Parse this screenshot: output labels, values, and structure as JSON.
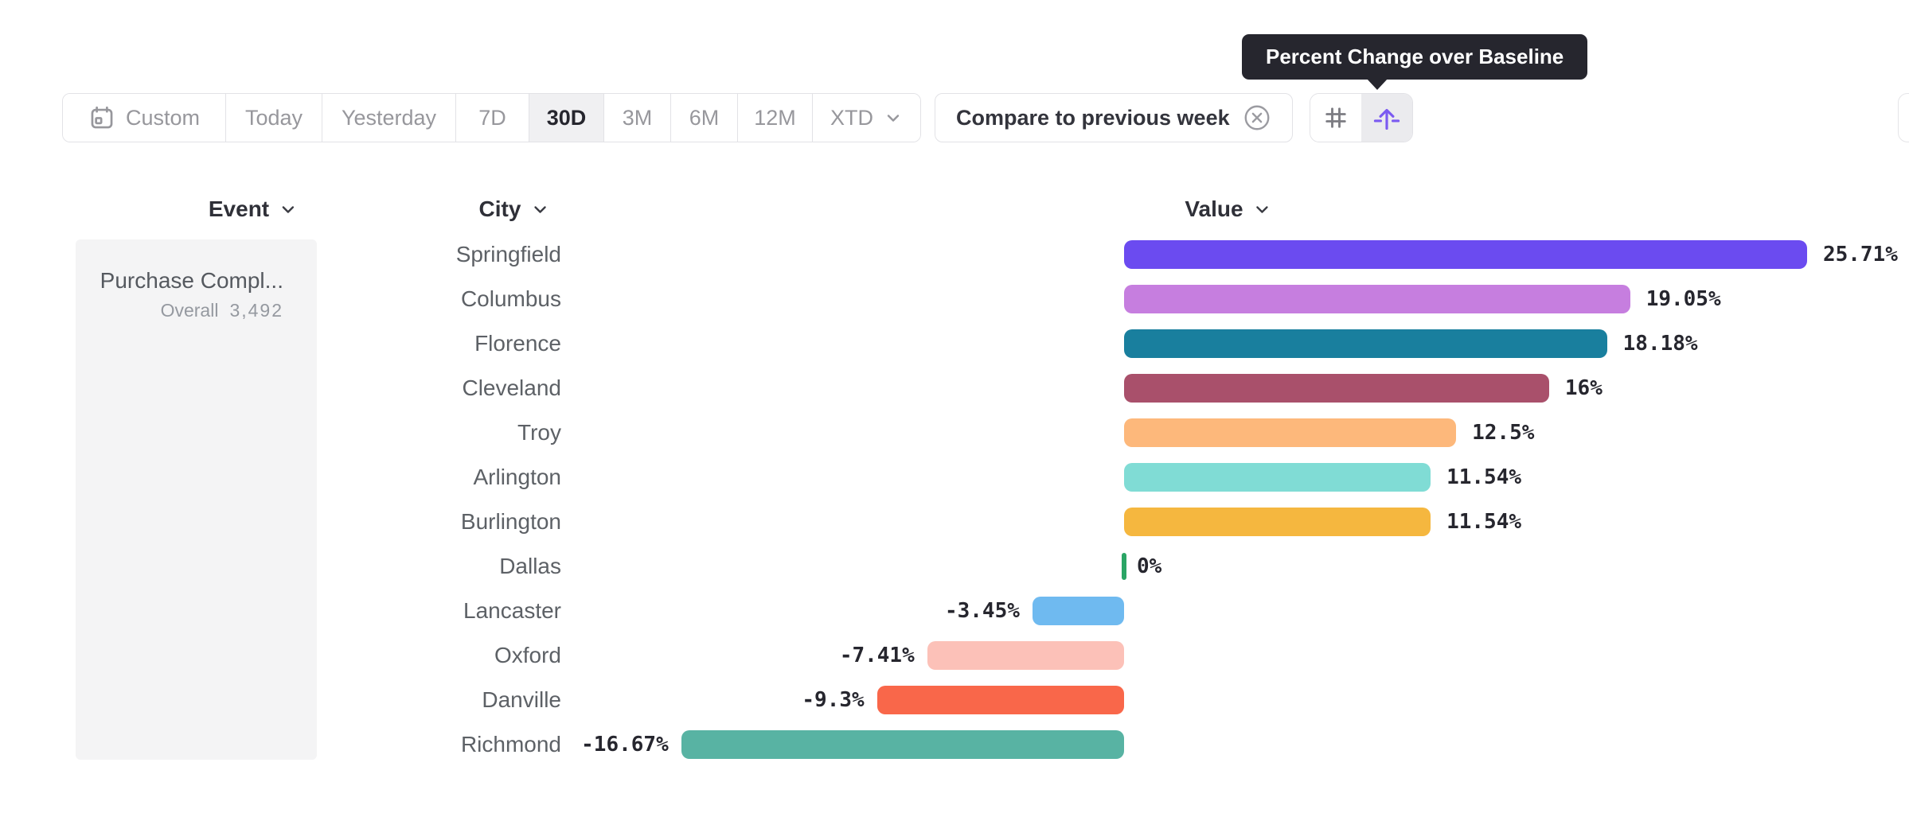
{
  "tooltip": {
    "text": "Percent Change over Baseline"
  },
  "toolbar": {
    "date_ranges": [
      {
        "label": "Custom",
        "icon": "calendar-icon",
        "selected": false
      },
      {
        "label": "Today",
        "selected": false
      },
      {
        "label": "Yesterday",
        "selected": false
      },
      {
        "label": "7D",
        "selected": false
      },
      {
        "label": "30D",
        "selected": true
      },
      {
        "label": "3M",
        "selected": false
      },
      {
        "label": "6M",
        "selected": false
      },
      {
        "label": "12M",
        "selected": false
      },
      {
        "label": "XTD",
        "has_chevron": true,
        "selected": false
      }
    ],
    "compare_chip": {
      "label": "Compare to previous week",
      "icon": "x-circle-icon"
    },
    "view_toggle": [
      {
        "icon": "grid-icon",
        "selected": false
      },
      {
        "icon": "baseline-arrow-icon",
        "selected": true
      }
    ]
  },
  "columns": {
    "event": {
      "label": "Event"
    },
    "city": {
      "label": "City"
    },
    "value": {
      "label": "Value"
    }
  },
  "event_panel": {
    "event_name": "Purchase Compl...",
    "overall_label": "Overall",
    "overall_value": "3,492"
  },
  "chart_data": {
    "type": "bar",
    "orientation": "horizontal",
    "title": "Percent Change over Baseline",
    "xlabel": "Value",
    "ylabel": "City",
    "value_unit": "percent",
    "baseline": 0,
    "categories": [
      "Springfield",
      "Columbus",
      "Florence",
      "Cleveland",
      "Troy",
      "Arlington",
      "Burlington",
      "Dallas",
      "Lancaster",
      "Oxford",
      "Danville",
      "Richmond"
    ],
    "values": [
      25.71,
      19.05,
      18.18,
      16,
      12.5,
      11.54,
      11.54,
      0,
      -3.45,
      -7.41,
      -9.3,
      -16.67
    ],
    "value_labels": [
      "25.71%",
      "19.05%",
      "18.18%",
      "16%",
      "12.5%",
      "11.54%",
      "11.54%",
      "0%",
      "-3.45%",
      "-7.41%",
      "-9.3%",
      "-16.67%"
    ],
    "bar_colors": [
      "#6b4bf0",
      "#c67edf",
      "#197f9e",
      "#a9506b",
      "#fdb87b",
      "#80dcd5",
      "#f5b73f",
      "#2aa565",
      "#6fbaf0",
      "#fcc1b8",
      "#f9674a",
      "#58b3a3"
    ],
    "zero_tick_color": "#2aa565",
    "legend": null,
    "grid": false
  },
  "colors": {
    "accent_purple": "#7b5af1",
    "tooltip_bg": "#26262e",
    "text_dark": "#26262e",
    "text_gray": "#97979c",
    "border": "#e2e2e6",
    "panel_bg": "#f4f4f5",
    "selected_bg": "#f0f0f2"
  }
}
